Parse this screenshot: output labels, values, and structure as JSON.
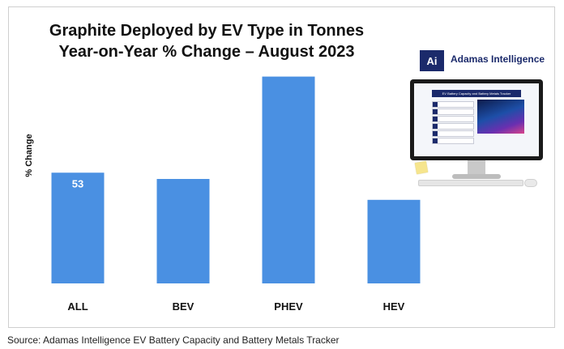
{
  "title_line1": "Graphite Deployed by EV Type in Tonnes",
  "title_line2": "Year-on-Year % Change – August 2023",
  "source": "Source: Adamas Intelligence EV Battery Capacity and Battery Metals Tracker",
  "logo": {
    "mark": "Ai",
    "name": "Adamas Intelligence"
  },
  "screen_title": "EV Battery Capacity and Battery Metals Tracker",
  "colors": {
    "bar": "#4a90e2",
    "title": "#111111",
    "brand": "#1b2a6b"
  },
  "chart_data": {
    "type": "bar",
    "title": "Graphite Deployed by EV Type in Tonnes Year-on-Year % Change – August 2023",
    "xlabel": "",
    "ylabel": "% Change",
    "categories": [
      "ALL",
      "BEV",
      "PHEV",
      "HEV"
    ],
    "values": [
      53,
      50,
      99,
      40
    ],
    "data_labels": [
      "53",
      "",
      "",
      ""
    ],
    "ylim": [
      0,
      100
    ],
    "grid": false,
    "legend": "none"
  }
}
